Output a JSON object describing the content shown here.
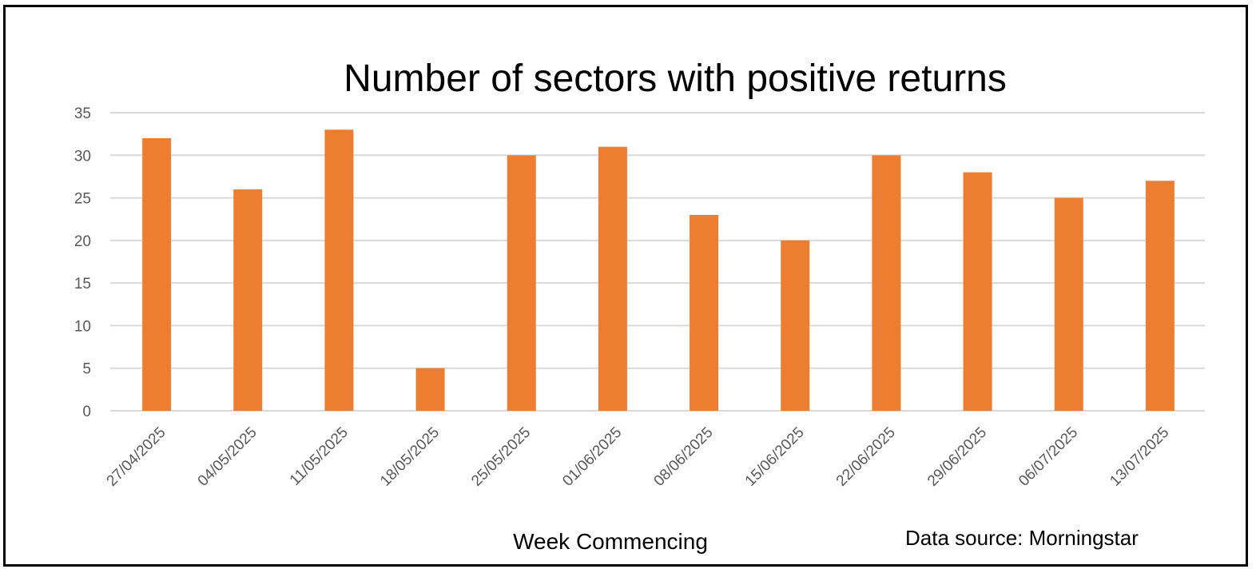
{
  "chart_data": {
    "type": "bar",
    "title": "Number of sectors with positive returns",
    "xlabel": "Week Commencing",
    "ylabel": "",
    "source_note": "Data source: Morningstar",
    "categories": [
      "27/04/2025",
      "04/05/2025",
      "11/05/2025",
      "18/05/2025",
      "25/05/2025",
      "01/06/2025",
      "08/06/2025",
      "15/06/2025",
      "22/06/2025",
      "29/06/2025",
      "06/07/2025",
      "13/07/2025"
    ],
    "values": [
      32,
      26,
      33,
      5,
      30,
      31,
      23,
      20,
      30,
      28,
      25,
      27
    ],
    "ylim": [
      0,
      35
    ],
    "yticks": [
      0,
      5,
      10,
      15,
      20,
      25,
      30,
      35
    ],
    "grid": true,
    "legend": "none",
    "bar_color": "#ED7D31",
    "grid_color": "#D9D9D9"
  }
}
